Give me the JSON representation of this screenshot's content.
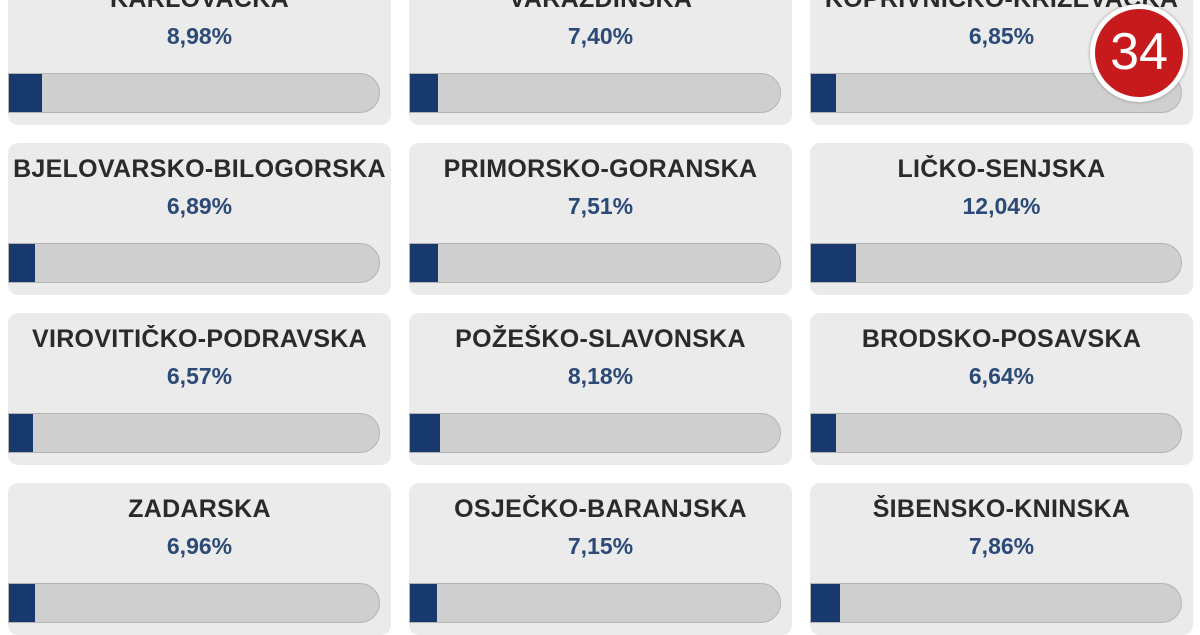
{
  "accent_color": "#17396b",
  "badge": {
    "label": "34"
  },
  "regions": [
    {
      "name": "KARLOVAČKA",
      "percent_label": "8,98%",
      "percent": 8.98
    },
    {
      "name": "VARAŽDINSKA",
      "percent_label": "7,40%",
      "percent": 7.4
    },
    {
      "name": "KOPRIVNIČKO-KRIŽEVAČKA",
      "percent_label": "6,85%",
      "percent": 6.85
    },
    {
      "name": "BJELOVARSKO-BILOGORSKA",
      "percent_label": "6,89%",
      "percent": 6.89
    },
    {
      "name": "PRIMORSKO-GORANSKA",
      "percent_label": "7,51%",
      "percent": 7.51
    },
    {
      "name": "LIČKO-SENJSKA",
      "percent_label": "12,04%",
      "percent": 12.04
    },
    {
      "name": "VIROVITIČKO-PODRAVSKA",
      "percent_label": "6,57%",
      "percent": 6.57
    },
    {
      "name": "POŽEŠKO-SLAVONSKA",
      "percent_label": "8,18%",
      "percent": 8.18
    },
    {
      "name": "BRODSKO-POSAVSKA",
      "percent_label": "6,64%",
      "percent": 6.64
    },
    {
      "name": "ZADARSKA",
      "percent_label": "6,96%",
      "percent": 6.96
    },
    {
      "name": "OSJEČKO-BARANJSKA",
      "percent_label": "7,15%",
      "percent": 7.15
    },
    {
      "name": "ŠIBENSKO-KNINSKA",
      "percent_label": "7,86%",
      "percent": 7.86
    }
  ]
}
